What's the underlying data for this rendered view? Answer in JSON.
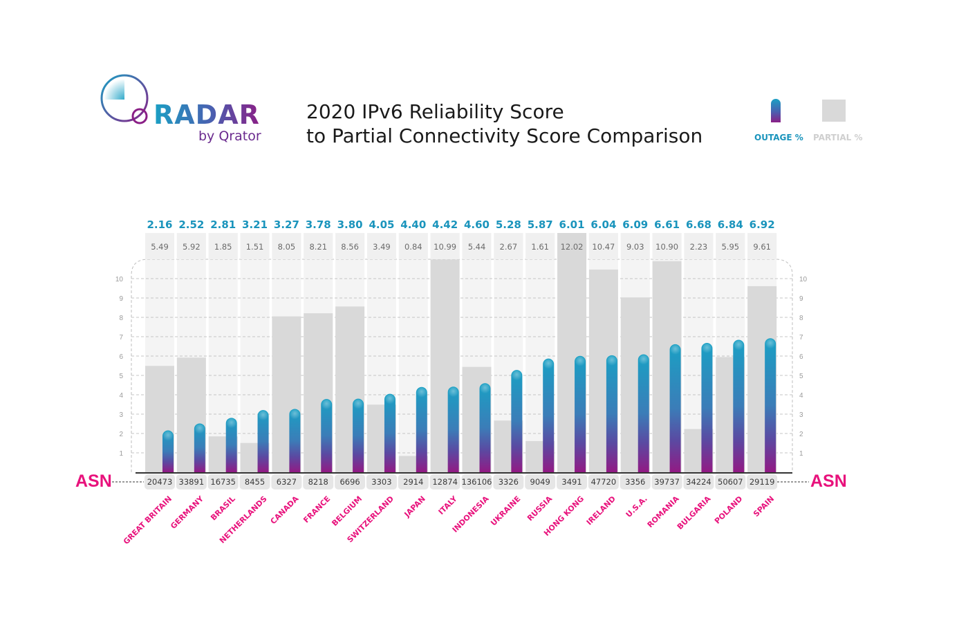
{
  "logo": {
    "word": "RADAR",
    "sub": "by Qrator"
  },
  "title": {
    "line1": "2020 IPv6 Reliability Score",
    "line2": "to Partial Connectivity Score Comparison"
  },
  "legend": {
    "outage": {
      "label": "OUTAGE %",
      "color": "#1a94bc"
    },
    "partial": {
      "label": "PARTIAL %",
      "color": "#d9d9d9"
    }
  },
  "asn_label": "ASN",
  "chart_data": {
    "type": "bar",
    "title": "2020 IPv6 Reliability Score to Partial Connectivity Score Comparison",
    "xlabel": "",
    "ylabel": "",
    "ylim": [
      0,
      10
    ],
    "yticks": [
      1,
      2,
      3,
      4,
      5,
      6,
      7,
      8,
      9,
      10
    ],
    "grid": true,
    "legend_position": "top-right",
    "categories": [
      "GREAT BRITAIN",
      "GERMANY",
      "BRASIL",
      "NETHERLANDS",
      "CANADA",
      "FRANCE",
      "BELGIUM",
      "SWITZERLAND",
      "JAPAN",
      "ITALY",
      "INDONESIA",
      "UKRAINE",
      "RUSSIA",
      "HONG KONG",
      "IRELAND",
      "U.S.A.",
      "ROMANIA",
      "BULGARIA",
      "POLAND",
      "SPAIN"
    ],
    "asn": [
      "20473",
      "33891",
      "16735",
      "8455",
      "6327",
      "8218",
      "6696",
      "3303",
      "2914",
      "12874",
      "136106",
      "3326",
      "9049",
      "3491",
      "47720",
      "3356",
      "39737",
      "34224",
      "50607",
      "29119"
    ],
    "series": [
      {
        "name": "OUTAGE %",
        "color": "#1a94bc",
        "values": [
          2.16,
          2.52,
          2.81,
          3.21,
          3.27,
          3.78,
          3.8,
          4.05,
          4.4,
          4.42,
          4.6,
          5.28,
          5.87,
          6.01,
          6.04,
          6.09,
          6.61,
          6.68,
          6.84,
          6.92
        ]
      },
      {
        "name": "PARTIAL %",
        "color": "#d9d9d9",
        "values": [
          5.49,
          5.92,
          1.85,
          1.51,
          8.05,
          8.21,
          8.56,
          3.49,
          0.84,
          10.99,
          5.44,
          2.67,
          1.61,
          12.02,
          10.47,
          9.03,
          10.9,
          2.23,
          5.95,
          9.61
        ]
      }
    ]
  }
}
